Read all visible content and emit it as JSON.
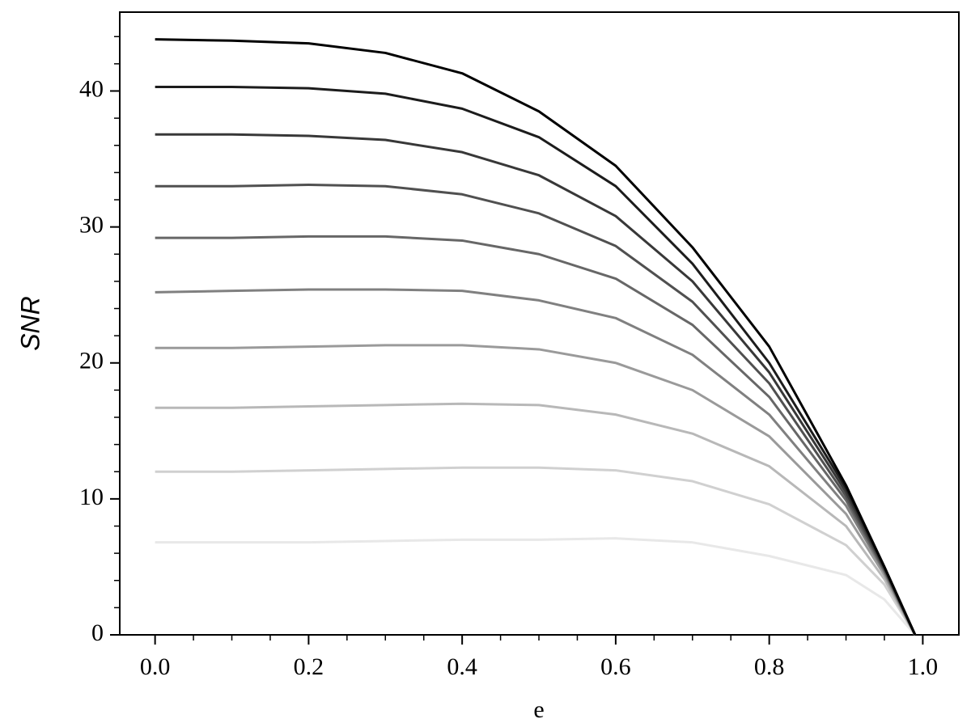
{
  "chart_data": {
    "type": "line",
    "x_label": "e",
    "y_label": "SNR",
    "x": [
      0,
      0.1,
      0.2,
      0.3,
      0.4,
      0.5,
      0.6,
      0.7,
      0.8,
      0.9,
      0.95,
      0.99
    ],
    "series": [
      {
        "color": "#000000",
        "values": [
          43.8,
          43.7,
          43.5,
          42.8,
          41.3,
          38.5,
          34.5,
          28.5,
          21.2,
          11,
          5,
          0
        ]
      },
      {
        "color": "#1c1c1c",
        "values": [
          40.3,
          40.3,
          40.2,
          39.8,
          38.7,
          36.6,
          33,
          27.3,
          20,
          10.8,
          5,
          0
        ]
      },
      {
        "color": "#383838",
        "values": [
          36.8,
          36.8,
          36.7,
          36.4,
          35.5,
          33.8,
          30.8,
          26,
          19.3,
          10.5,
          4.9,
          0
        ]
      },
      {
        "color": "#505050",
        "values": [
          33,
          33,
          33.1,
          33,
          32.4,
          31,
          28.6,
          24.5,
          18.5,
          10.2,
          4.8,
          0
        ]
      },
      {
        "color": "#676767",
        "values": [
          29.2,
          29.2,
          29.3,
          29.3,
          29,
          28,
          26.2,
          22.8,
          17.5,
          9.9,
          4.7,
          0
        ]
      },
      {
        "color": "#808080",
        "values": [
          25.2,
          25.3,
          25.4,
          25.4,
          25.3,
          24.6,
          23.3,
          20.6,
          16.2,
          9.5,
          4.6,
          0
        ]
      },
      {
        "color": "#9a9a9a",
        "values": [
          21.1,
          21.1,
          21.2,
          21.3,
          21.3,
          21,
          20,
          18,
          14.6,
          8.9,
          4.4,
          0
        ]
      },
      {
        "color": "#b8b8b8",
        "values": [
          16.7,
          16.7,
          16.8,
          16.9,
          17,
          16.9,
          16.2,
          14.8,
          12.4,
          8,
          4.1,
          0
        ]
      },
      {
        "color": "#d0d0d0",
        "values": [
          12,
          12,
          12.1,
          12.2,
          12.3,
          12.3,
          12.1,
          11.3,
          9.6,
          6.6,
          3.7,
          0
        ]
      },
      {
        "color": "#e8e8e8",
        "values": [
          6.8,
          6.8,
          6.8,
          6.9,
          7,
          7,
          7.1,
          6.8,
          5.8,
          4.4,
          2.6,
          0
        ]
      }
    ],
    "xlim": [
      -0.046,
      1.047
    ],
    "ylim": [
      0,
      45.8
    ],
    "xticks": [
      {
        "value": 0,
        "label": "0.0"
      },
      0.2,
      0.4,
      0.6,
      0.8,
      {
        "value": 1,
        "label": "1.0"
      }
    ],
    "yticks": [
      0,
      10,
      20,
      30,
      40
    ],
    "xminorticks": [
      0.05,
      0.1,
      0.15,
      0.25,
      0.3,
      0.35,
      0.45,
      0.5,
      0.55,
      0.65,
      0.7,
      0.75,
      0.85,
      0.9,
      0.95
    ],
    "yminorticks": [
      2,
      4,
      6,
      8,
      12,
      14,
      16,
      18,
      22,
      24,
      26,
      28,
      32,
      34,
      36,
      38,
      42,
      44
    ]
  }
}
